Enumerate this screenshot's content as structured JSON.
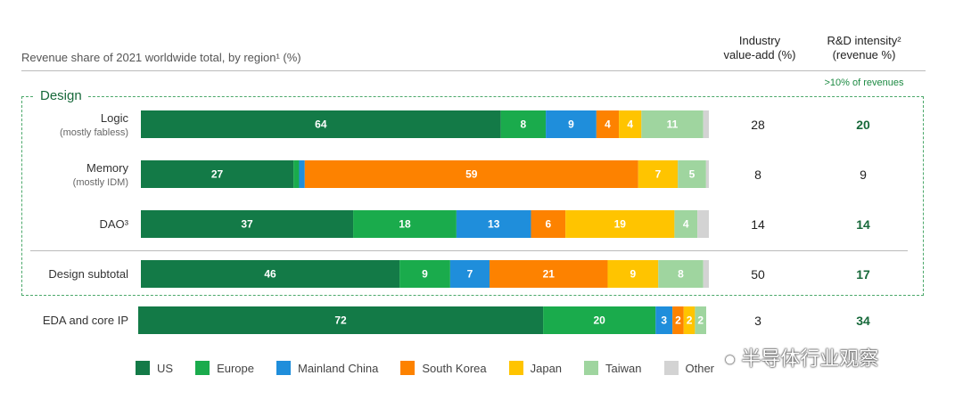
{
  "header": {
    "title": "Revenue share of 2021 worldwide total, by region¹ (%)",
    "col_industry": [
      "Industry",
      "value-add (%)"
    ],
    "col_rd": [
      "R&D intensity²",
      "(revenue %)"
    ],
    "rd_note": ">10% of revenues"
  },
  "group_label": "Design",
  "watermark": "半导体行业观察",
  "colors": {
    "US": "#137a47",
    "Europe": "#1aab4c",
    "Mainland China": "#1f8edb",
    "South Korea": "#fd8200",
    "Japan": "#ffc400",
    "Taiwan": "#9fd59f",
    "Other": "#d3d3d3",
    "accent_green": "#17693a"
  },
  "chart_data": {
    "type": "bar",
    "orientation": "horizontal",
    "stacked": true,
    "xlim": [
      0,
      100
    ],
    "series_names": [
      "US",
      "Europe",
      "Mainland China",
      "South Korea",
      "Japan",
      "Taiwan",
      "Other"
    ],
    "rows": [
      {
        "label": "Logic",
        "sublabel": "(mostly fabless)",
        "values": [
          64,
          8,
          9,
          4,
          4,
          11,
          1
        ],
        "shown": [
          "64",
          "8",
          "9",
          "4",
          "4",
          "11",
          ""
        ],
        "industry_value_add": "28",
        "rd_intensity": "20",
        "rd_highlight": true
      },
      {
        "label": "Memory",
        "sublabel": "(mostly IDM)",
        "values": [
          27,
          1,
          1,
          59,
          7,
          5,
          0.5
        ],
        "shown": [
          "27",
          "",
          "",
          "59",
          "7",
          "5",
          ""
        ],
        "industry_value_add": "8",
        "rd_intensity": "9",
        "rd_highlight": false
      },
      {
        "label": "DAO³",
        "sublabel": "",
        "values": [
          37,
          18,
          13,
          6,
          19,
          4,
          2
        ],
        "shown": [
          "37",
          "18",
          "13",
          "6",
          "19",
          "4",
          ""
        ],
        "industry_value_add": "14",
        "rd_intensity": "14",
        "rd_highlight": true
      },
      {
        "label": "Design subtotal",
        "sublabel": "",
        "values": [
          46,
          9,
          7,
          21,
          9,
          8,
          1
        ],
        "shown": [
          "46",
          "9",
          "7",
          "21",
          "9",
          "8",
          ""
        ],
        "industry_value_add": "50",
        "rd_intensity": "17",
        "rd_highlight": true
      },
      {
        "label": "EDA and core IP",
        "sublabel": "",
        "values": [
          72,
          20,
          3,
          2,
          2,
          2,
          0
        ],
        "shown": [
          "72",
          "20",
          "3",
          "2",
          "2",
          "2",
          ""
        ],
        "industry_value_add": "3",
        "rd_intensity": "34",
        "rd_highlight": true
      }
    ]
  },
  "legend": [
    {
      "name": "US",
      "color_key": "US"
    },
    {
      "name": "Europe",
      "color_key": "Europe"
    },
    {
      "name": "Mainland China",
      "color_key": "Mainland China"
    },
    {
      "name": "South Korea",
      "color_key": "South Korea"
    },
    {
      "name": "Japan",
      "color_key": "Japan"
    },
    {
      "name": "Taiwan",
      "color_key": "Taiwan"
    },
    {
      "name": "Other",
      "color_key": "Other"
    }
  ]
}
